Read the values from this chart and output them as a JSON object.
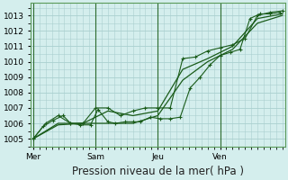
{
  "background_color": "#d4eeed",
  "grid_color": "#aacfcf",
  "line_color": "#1a5c1a",
  "vline_color": "#2d6b2d",
  "ylim": [
    1004.5,
    1013.8
  ],
  "yticks": [
    1005,
    1006,
    1007,
    1008,
    1009,
    1010,
    1011,
    1012,
    1013
  ],
  "xlabel": "Pression niveau de la mer( hPa )",
  "xlabel_fontsize": 8.5,
  "tick_fontsize": 6.5,
  "day_labels": [
    "Mer",
    "Sam",
    "Jeu",
    "Ven"
  ],
  "day_positions": [
    0.0,
    2.5,
    5.0,
    7.5
  ],
  "xlim": [
    -0.1,
    10.1
  ],
  "line1_x": [
    0.0,
    0.4,
    0.8,
    1.2,
    1.5,
    1.9,
    2.3,
    2.6,
    3.0,
    3.3,
    3.7,
    4.0,
    4.3,
    4.7,
    5.1,
    5.5,
    5.9,
    6.3,
    6.7,
    7.1,
    7.5,
    7.9,
    8.3,
    8.7,
    9.1,
    9.5,
    9.9
  ],
  "line1_y": [
    1005.0,
    1005.8,
    1006.2,
    1006.5,
    1006.0,
    1005.9,
    1005.9,
    1006.9,
    1006.1,
    1006.0,
    1006.1,
    1006.1,
    1006.1,
    1006.4,
    1006.3,
    1006.3,
    1006.4,
    1008.3,
    1009.0,
    1009.8,
    1010.4,
    1010.6,
    1010.8,
    1012.8,
    1013.1,
    1013.1,
    1013.2
  ],
  "line2_x": [
    0.0,
    1.0,
    2.0,
    3.0,
    4.0,
    5.0,
    6.0,
    7.0,
    8.0,
    9.0,
    10.0
  ],
  "line2_y": [
    1005.0,
    1005.9,
    1006.0,
    1006.0,
    1006.0,
    1006.5,
    1008.8,
    1010.0,
    1010.8,
    1012.5,
    1013.0
  ],
  "line3_x": [
    0.0,
    0.5,
    1.0,
    1.5,
    2.0,
    2.5,
    3.0,
    3.5,
    4.0,
    4.5,
    5.0,
    5.5,
    6.0,
    6.5,
    7.0,
    7.5,
    8.0,
    8.5,
    9.0,
    9.5,
    10.0
  ],
  "line3_y": [
    1005.0,
    1006.0,
    1006.5,
    1006.0,
    1006.0,
    1007.0,
    1007.0,
    1006.5,
    1006.8,
    1007.0,
    1007.0,
    1007.0,
    1010.2,
    1010.3,
    1010.7,
    1010.9,
    1011.1,
    1011.5,
    1013.0,
    1013.2,
    1013.3
  ],
  "line4_x": [
    0.0,
    1.0,
    2.0,
    3.0,
    4.0,
    5.0,
    6.0,
    7.0,
    8.0,
    9.0,
    10.0
  ],
  "line4_y": [
    1005.0,
    1006.0,
    1006.0,
    1006.8,
    1006.5,
    1006.8,
    1009.5,
    1010.2,
    1011.0,
    1012.8,
    1013.1
  ]
}
